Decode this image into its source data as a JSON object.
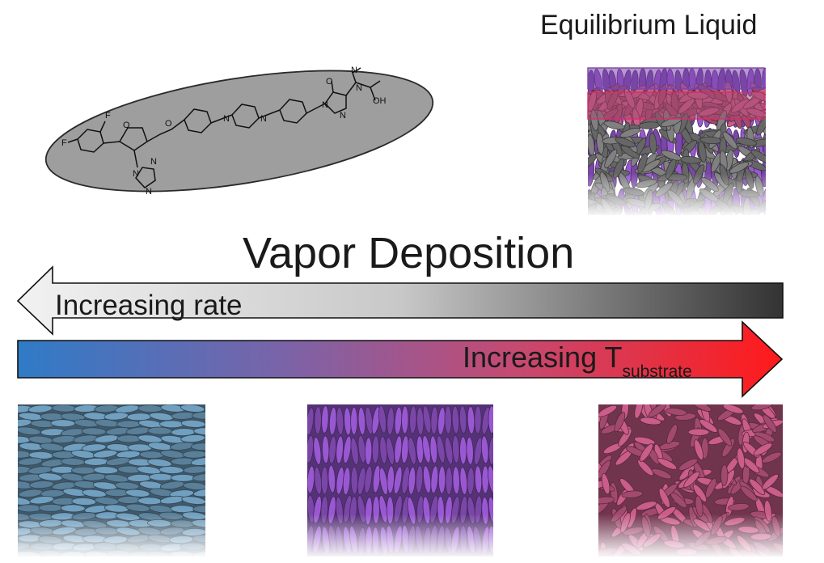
{
  "title_equilibrium": "Equilibrium Liquid",
  "title_deposition": "Vapor Deposition",
  "arrow_rate": {
    "label": "Increasing rate",
    "gradient": [
      "#f2f2f2",
      "#333333"
    ]
  },
  "arrow_temp": {
    "label_main": "Increasing T",
    "label_sub": "substrate",
    "gradient": [
      "#2f7bc7",
      "#7b63a8",
      "#c54a72",
      "#ff1a1a"
    ]
  },
  "molecule": {
    "atom_labels": [
      "F",
      "F",
      "O",
      "O",
      "N",
      "N",
      "N",
      "N",
      "O",
      "N",
      "N",
      "OH",
      "N",
      "N",
      "N"
    ]
  },
  "panels": [
    {
      "id": "low",
      "color": "#5a7f99",
      "packing": "horizontal"
    },
    {
      "id": "mid",
      "color": "#7a46a8",
      "packing": "vertical"
    },
    {
      "id": "high",
      "color": "#a24a6e",
      "packing": "random"
    },
    {
      "id": "liquid",
      "layers": [
        "#7a46a8",
        "#a24a6e",
        "#666666"
      ],
      "packing": "random"
    }
  ]
}
